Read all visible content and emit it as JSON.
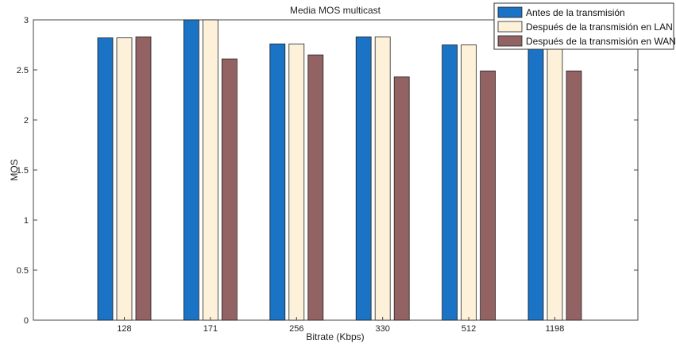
{
  "chart_data": {
    "type": "bar",
    "title": "Media MOS multicast",
    "xlabel": "Bitrate (Kbps)",
    "ylabel": "MOS",
    "categories": [
      "128",
      "171",
      "256",
      "330",
      "512",
      "1198"
    ],
    "ylim": [
      0,
      3
    ],
    "yticks": [
      "0",
      "0.5",
      "1",
      "1.5",
      "2",
      "2.5",
      "3"
    ],
    "grid": false,
    "legend_position": "top-right",
    "series": [
      {
        "name": "Antes de la transmisión",
        "color": "#1a73c4",
        "values": [
          2.82,
          3.0,
          2.76,
          2.83,
          2.75,
          2.74
        ]
      },
      {
        "name": "Después de la transmisión en LAN",
        "color": "#fdf1d9",
        "values": [
          2.82,
          3.0,
          2.76,
          2.83,
          2.75,
          2.74
        ]
      },
      {
        "name": "Después de la transmisión en WAN",
        "color": "#936262",
        "values": [
          2.83,
          2.61,
          2.65,
          2.43,
          2.49,
          2.49
        ]
      }
    ]
  }
}
